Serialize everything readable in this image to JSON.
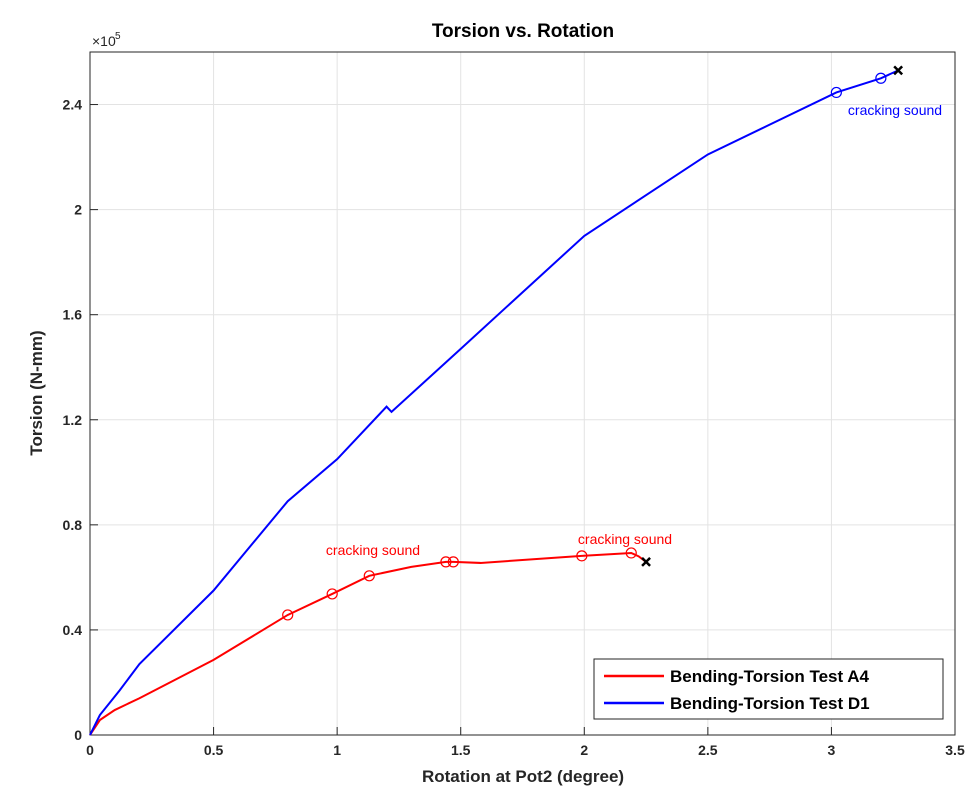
{
  "chart_data": {
    "type": "line",
    "title": "Torsion vs. Rotation",
    "x_label": "Rotation at Pot2 (degree)",
    "y_label": "Torsion (N-mm)",
    "y_multiplier": "×10",
    "y_multiplier_exponent": "5",
    "xlim": [
      0,
      3.5
    ],
    "ylim": [
      0,
      2.6
    ],
    "xticks": [
      0,
      0.5,
      1,
      1.5,
      2,
      2.5,
      3,
      3.5
    ],
    "yticks": [
      0,
      0.4,
      0.8,
      1.2,
      1.6,
      2,
      2.4
    ],
    "grid": true,
    "legend_position": "lower-right",
    "series": [
      {
        "name": "Bending-Torsion Test A4",
        "color": "#ff0000",
        "x": [
          0,
          0.04,
          0.1,
          0.2,
          0.5,
          0.8,
          0.98,
          1.13,
          1.3,
          1.44,
          1.47,
          1.58,
          1.99,
          2.19,
          2.22,
          2.25
        ],
        "values": [
          0,
          0.057,
          0.095,
          0.14,
          0.286,
          0.457,
          0.537,
          0.606,
          0.64,
          0.659,
          0.659,
          0.655,
          0.682,
          0.693,
          0.68,
          0.659
        ],
        "marker_x": [
          0.8,
          0.98,
          1.13,
          1.44,
          1.47,
          1.99,
          2.19
        ],
        "marker_values": [
          0.457,
          0.537,
          0.606,
          0.659,
          0.659,
          0.682,
          0.693
        ],
        "end_x": 2.25,
        "end_value": 0.659
      },
      {
        "name": "Bending-Torsion Test D1",
        "color": "#0000ff",
        "x": [
          0,
          0.04,
          0.12,
          0.2,
          0.5,
          0.8,
          1.0,
          1.2,
          1.22,
          1.5,
          2.0,
          2.5,
          3.02,
          3.2,
          3.27
        ],
        "values": [
          0,
          0.076,
          0.17,
          0.27,
          0.55,
          0.89,
          1.05,
          1.25,
          1.23,
          1.47,
          1.9,
          2.21,
          2.446,
          2.5,
          2.53
        ],
        "marker_x": [
          3.02,
          3.2
        ],
        "marker_values": [
          2.446,
          2.5
        ],
        "end_x": 3.27,
        "end_value": 2.53
      }
    ],
    "annotations": [
      {
        "text": "cracking sound",
        "color": "#ff0000"
      },
      {
        "text": "cracking sound",
        "color": "#ff0000"
      },
      {
        "text": "cracking sound",
        "color": "#0000ff"
      }
    ]
  }
}
